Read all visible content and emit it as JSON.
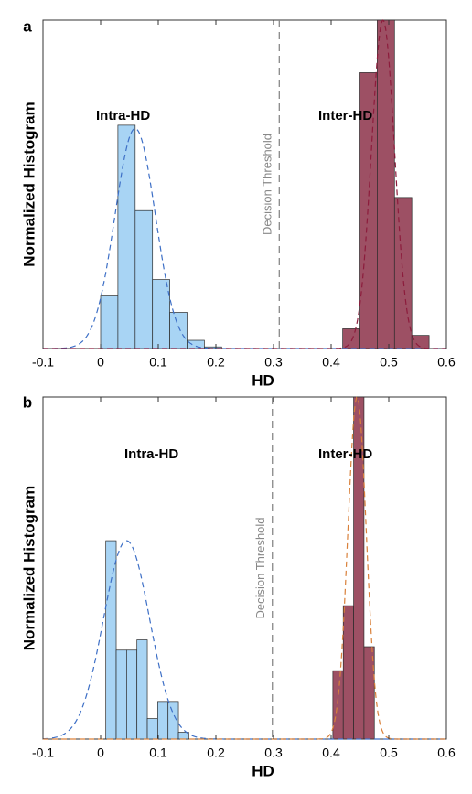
{
  "chart_data": [
    {
      "type": "histogram",
      "panel": "a",
      "xlabel": "HD",
      "ylabel": "Normalized Histogram",
      "xlim": [
        -0.1,
        0.6
      ],
      "xticks": [
        -0.1,
        0,
        0.1,
        0.2,
        0.3,
        0.4,
        0.5,
        0.6
      ],
      "ylim": [
        0,
        1
      ],
      "threshold": {
        "value": 0.31,
        "label": "Decision Threshold"
      },
      "series": [
        {
          "name": "Intra-HD",
          "color": "#a8d4f4",
          "bins": [
            0,
            0.03,
            0.06,
            0.09,
            0.12,
            0.15,
            0.18,
            0.21
          ],
          "values": [
            0.16,
            0.68,
            0.42,
            0.21,
            0.11,
            0.025,
            0.005
          ],
          "fit": {
            "mean": 0.06,
            "sd": 0.035,
            "peak": 0.67,
            "color": "#3d6fc6"
          }
        },
        {
          "name": "Inter-HD",
          "color": "#9d5064",
          "bins": [
            0.42,
            0.45,
            0.48,
            0.51,
            0.54,
            0.57
          ],
          "values": [
            0.06,
            0.84,
            1.0,
            0.46,
            0.04
          ],
          "fit": {
            "mean": 0.49,
            "sd": 0.02,
            "peak": 1.0,
            "color": "#8c1c3c"
          }
        }
      ]
    },
    {
      "type": "histogram",
      "panel": "b",
      "xlabel": "HD",
      "ylabel": "Normalized Histogram",
      "xlim": [
        -0.1,
        0.6
      ],
      "xticks": [
        -0.1,
        0,
        0.1,
        0.2,
        0.3,
        0.4,
        0.5,
        0.6
      ],
      "ylim": [
        0,
        1
      ],
      "threshold": {
        "value": 0.298,
        "label": "Decision Threshold"
      },
      "series": [
        {
          "name": "Intra-HD",
          "color": "#a8d4f4",
          "bins": [
            0.009,
            0.027,
            0.045,
            0.063,
            0.081,
            0.099,
            0.117,
            0.135,
            0.153
          ],
          "values": [
            0.58,
            0.26,
            0.26,
            0.29,
            0.06,
            0.11,
            0.11,
            0.02
          ],
          "fit": {
            "mean": 0.045,
            "sd": 0.04,
            "peak": 0.58,
            "color": "#3d6fc6"
          }
        },
        {
          "name": "Inter-HD",
          "color": "#9d5064",
          "bins": [
            0.403,
            0.421,
            0.439,
            0.457,
            0.475
          ],
          "values": [
            0.2,
            0.39,
            1.0,
            0.27
          ],
          "fit": {
            "mean": 0.445,
            "sd": 0.016,
            "peak": 1.0,
            "color": "#d9803a"
          }
        }
      ]
    }
  ]
}
